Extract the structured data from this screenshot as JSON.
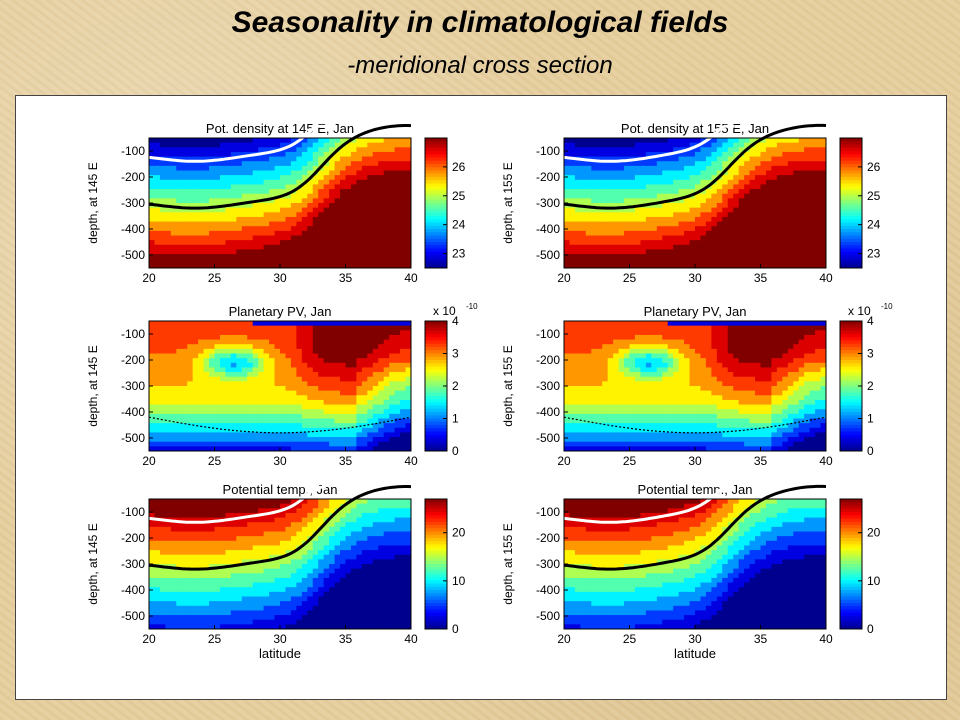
{
  "header": {
    "title": "Seasonality in climatological fields",
    "subtitle": "-meridional cross section"
  },
  "colorscale": [
    "#00008f",
    "#0000ff",
    "#0080ff",
    "#00ffff",
    "#80ff80",
    "#ffff00",
    "#ff8000",
    "#ff0000",
    "#800000"
  ],
  "chart_data": [
    {
      "type": "heatmap",
      "title": "Pot. density at 145 E, Jan",
      "xlabel": "",
      "ylabel": "depth, at 145 E",
      "x": [
        20,
        25,
        30,
        35,
        40
      ],
      "y": [
        -100,
        -200,
        -300,
        -400,
        -500
      ],
      "xlim": [
        20,
        40
      ],
      "ylim": [
        -550,
        -50
      ],
      "colorbar": {
        "ticks": [
          23,
          24,
          25,
          26
        ],
        "range": [
          22.5,
          27
        ],
        "exponent": ""
      },
      "field": "density",
      "front_lat": 34.5
    },
    {
      "type": "heatmap",
      "title": "Pot. density at 155 E, Jan",
      "xlabel": "",
      "ylabel": "depth, at 155 E",
      "x": [
        20,
        25,
        30,
        35,
        40
      ],
      "y": [
        -100,
        -200,
        -300,
        -400,
        -500
      ],
      "xlim": [
        20,
        40
      ],
      "ylim": [
        -550,
        -50
      ],
      "colorbar": {
        "ticks": [
          23,
          24,
          25,
          26
        ],
        "range": [
          22.5,
          27
        ],
        "exponent": ""
      },
      "field": "density",
      "front_lat": 34
    },
    {
      "type": "heatmap",
      "title": "Planetary PV, Jan",
      "xlabel": "",
      "ylabel": "depth, at 145 E",
      "x": [
        20,
        25,
        30,
        35,
        40
      ],
      "y": [
        -100,
        -200,
        -300,
        -400,
        -500
      ],
      "xlim": [
        20,
        40
      ],
      "ylim": [
        -550,
        -50
      ],
      "colorbar": {
        "ticks": [
          0,
          1,
          2,
          3,
          4
        ],
        "range": [
          0,
          4
        ],
        "exponent": "x 10",
        "exp_power": "-10"
      },
      "field": "pv",
      "front_lat": 33
    },
    {
      "type": "heatmap",
      "title": "Planetary PV, Jan",
      "xlabel": "",
      "ylabel": "depth, at 155 E",
      "x": [
        20,
        25,
        30,
        35,
        40
      ],
      "y": [
        -100,
        -200,
        -300,
        -400,
        -500
      ],
      "xlim": [
        20,
        40
      ],
      "ylim": [
        -550,
        -50
      ],
      "colorbar": {
        "ticks": [
          0,
          1,
          2,
          3,
          4
        ],
        "range": [
          0,
          4
        ],
        "exponent": "x 10",
        "exp_power": "-10"
      },
      "field": "pv",
      "front_lat": 33
    },
    {
      "type": "heatmap",
      "title": "Potential temp., Jan",
      "xlabel": "latitude",
      "ylabel": "depth, at 145 E",
      "x": [
        20,
        25,
        30,
        35,
        40
      ],
      "y": [
        -100,
        -200,
        -300,
        -400,
        -500
      ],
      "xlim": [
        20,
        40
      ],
      "ylim": [
        -550,
        -50
      ],
      "colorbar": {
        "ticks": [
          0,
          10,
          20
        ],
        "range": [
          0,
          27
        ],
        "exponent": ""
      },
      "field": "temp",
      "front_lat": 34.5
    },
    {
      "type": "heatmap",
      "title": "Potential temp., Jan",
      "xlabel": "latitude",
      "ylabel": "depth, at 155 E",
      "x": [
        20,
        25,
        30,
        35,
        40
      ],
      "y": [
        -100,
        -200,
        -300,
        -400,
        -500
      ],
      "xlim": [
        20,
        40
      ],
      "ylim": [
        -550,
        -50
      ],
      "colorbar": {
        "ticks": [
          0,
          10,
          20
        ],
        "range": [
          0,
          27
        ],
        "exponent": ""
      },
      "field": "temp",
      "front_lat": 34
    }
  ]
}
